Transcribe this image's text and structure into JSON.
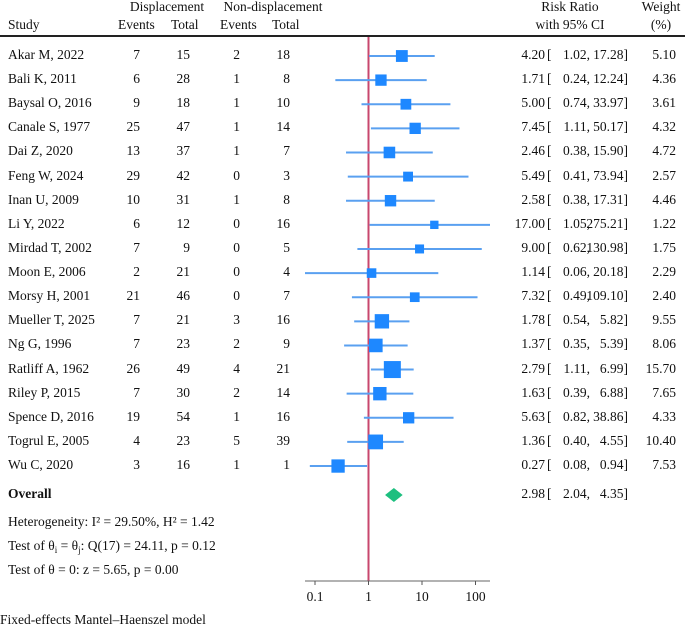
{
  "headers": {
    "study": "Study",
    "group1": "Displacement",
    "group2": "Non-displacement",
    "events": "Events",
    "total": "Total",
    "rr_line1": "Risk Ratio",
    "rr_line2": "with 95% CI",
    "weight_line1": "Weight",
    "weight_line2": "(%)"
  },
  "chart_data": {
    "type": "forest",
    "xscale": "log",
    "xlim": [
      0.08,
      140
    ],
    "xticks": [
      0.1,
      1,
      10,
      100
    ],
    "xtick_labels": [
      "0.1",
      "1",
      "10",
      "100"
    ],
    "reference_line": 1,
    "colors": {
      "marker": "#1e88ff",
      "ci": "#5aa0f0",
      "reference": "#c8476e",
      "overall": "#1dbf7f"
    },
    "studies": [
      {
        "study": "Akar M, 2022",
        "e1": 7,
        "n1": 15,
        "e2": 2,
        "n2": 18,
        "rr": 4.2,
        "lo": 1.02,
        "hi": 17.28,
        "rr_text": "4.20",
        "lo_text": "1.02,",
        "hi_text": "17.28]",
        "weight": "5.10"
      },
      {
        "study": "Bali K, 2011",
        "e1": 6,
        "n1": 28,
        "e2": 1,
        "n2": 8,
        "rr": 1.71,
        "lo": 0.24,
        "hi": 12.24,
        "rr_text": "1.71",
        "lo_text": "0.24,",
        "hi_text": "12.24]",
        "weight": "4.36"
      },
      {
        "study": "Baysal O, 2016",
        "e1": 9,
        "n1": 18,
        "e2": 1,
        "n2": 10,
        "rr": 5.0,
        "lo": 0.74,
        "hi": 33.97,
        "rr_text": "5.00",
        "lo_text": "0.74,",
        "hi_text": "33.97]",
        "weight": "3.61"
      },
      {
        "study": "Canale S, 1977",
        "e1": 25,
        "n1": 47,
        "e2": 1,
        "n2": 14,
        "rr": 7.45,
        "lo": 1.11,
        "hi": 50.17,
        "rr_text": "7.45",
        "lo_text": "1.11,",
        "hi_text": "50.17]",
        "weight": "4.32"
      },
      {
        "study": "Dai Z, 2020",
        "e1": 13,
        "n1": 37,
        "e2": 1,
        "n2": 7,
        "rr": 2.46,
        "lo": 0.38,
        "hi": 15.9,
        "rr_text": "2.46",
        "lo_text": "0.38,",
        "hi_text": "15.90]",
        "weight": "4.72"
      },
      {
        "study": "Feng W, 2024",
        "e1": 29,
        "n1": 42,
        "e2": 0,
        "n2": 3,
        "rr": 5.49,
        "lo": 0.41,
        "hi": 73.94,
        "rr_text": "5.49",
        "lo_text": "0.41,",
        "hi_text": "73.94]",
        "weight": "2.57"
      },
      {
        "study": "Inan U, 2009",
        "e1": 10,
        "n1": 31,
        "e2": 1,
        "n2": 8,
        "rr": 2.58,
        "lo": 0.38,
        "hi": 17.31,
        "rr_text": "2.58",
        "lo_text": "0.38,",
        "hi_text": "17.31]",
        "weight": "4.46"
      },
      {
        "study": "Li Y, 2022",
        "e1": 6,
        "n1": 12,
        "e2": 0,
        "n2": 16,
        "rr": 17.0,
        "lo": 1.05,
        "hi": 275.21,
        "rr_text": "17.00",
        "lo_text": "1.05,",
        "hi_text": "275.21]",
        "weight": "1.22"
      },
      {
        "study": "Mirdad T, 2002",
        "e1": 7,
        "n1": 9,
        "e2": 0,
        "n2": 5,
        "rr": 9.0,
        "lo": 0.62,
        "hi": 130.98,
        "rr_text": "9.00",
        "lo_text": "0.62,",
        "hi_text": "130.98]",
        "weight": "1.75"
      },
      {
        "study": "Moon E, 2006",
        "e1": 2,
        "n1": 21,
        "e2": 0,
        "n2": 4,
        "rr": 1.14,
        "lo": 0.06,
        "hi": 20.18,
        "rr_text": "1.14",
        "lo_text": "0.06,",
        "hi_text": "20.18]",
        "weight": "2.29"
      },
      {
        "study": "Morsy H, 2001",
        "e1": 21,
        "n1": 46,
        "e2": 0,
        "n2": 7,
        "rr": 7.32,
        "lo": 0.49,
        "hi": 109.1,
        "rr_text": "7.32",
        "lo_text": "0.49,",
        "hi_text": "109.10]",
        "weight": "2.40"
      },
      {
        "study": "Mueller T, 2025",
        "e1": 7,
        "n1": 21,
        "e2": 3,
        "n2": 16,
        "rr": 1.78,
        "lo": 0.54,
        "hi": 5.82,
        "rr_text": "1.78",
        "lo_text": "0.54,",
        "hi_text": "5.82]",
        "weight": "9.55"
      },
      {
        "study": "Ng G, 1996",
        "e1": 7,
        "n1": 23,
        "e2": 2,
        "n2": 9,
        "rr": 1.37,
        "lo": 0.35,
        "hi": 5.39,
        "rr_text": "1.37",
        "lo_text": "0.35,",
        "hi_text": "5.39]",
        "weight": "8.06"
      },
      {
        "study": "Ratliff A, 1962",
        "e1": 26,
        "n1": 49,
        "e2": 4,
        "n2": 21,
        "rr": 2.79,
        "lo": 1.11,
        "hi": 6.99,
        "rr_text": "2.79",
        "lo_text": "1.11,",
        "hi_text": "6.99]",
        "weight": "15.70"
      },
      {
        "study": "Riley P, 2015",
        "e1": 7,
        "n1": 30,
        "e2": 2,
        "n2": 14,
        "rr": 1.63,
        "lo": 0.39,
        "hi": 6.88,
        "rr_text": "1.63",
        "lo_text": "0.39,",
        "hi_text": "6.88]",
        "weight": "7.65"
      },
      {
        "study": "Spence D, 2016",
        "e1": 19,
        "n1": 54,
        "e2": 1,
        "n2": 16,
        "rr": 5.63,
        "lo": 0.82,
        "hi": 38.86,
        "rr_text": "5.63",
        "lo_text": "0.82,",
        "hi_text": "38.86]",
        "weight": "4.33"
      },
      {
        "study": "Togrul E, 2005",
        "e1": 4,
        "n1": 23,
        "e2": 5,
        "n2": 39,
        "rr": 1.36,
        "lo": 0.4,
        "hi": 4.55,
        "rr_text": "1.36",
        "lo_text": "0.40,",
        "hi_text": "4.55]",
        "weight": "10.40"
      },
      {
        "study": "Wu C, 2020",
        "e1": 3,
        "n1": 16,
        "e2": 1,
        "n2": 1,
        "rr": 0.27,
        "lo": 0.08,
        "hi": 0.94,
        "rr_text": "0.27",
        "lo_text": "0.08,",
        "hi_text": "0.94]",
        "weight": "7.53"
      }
    ],
    "overall": {
      "label": "Overall",
      "rr": 2.98,
      "lo": 2.04,
      "hi": 4.35,
      "rr_text": "2.98",
      "lo_text": "2.04,",
      "hi_text": "4.35]"
    }
  },
  "stats": {
    "heterogeneity": "Heterogeneity: I² = 29.50%, H² = 1.42",
    "test_ij_prefix": "Test of θ",
    "test_ij_sub_i": "i",
    "test_ij_mid": " = θ",
    "test_ij_sub_j": "j",
    "test_ij_suffix": ": Q(17) = 24.11, p = 0.12",
    "test_zero": "Test of θ = 0: z = 5.65, p = 0.00"
  },
  "footer": "Fixed-effects Mantel–Haenszel model"
}
